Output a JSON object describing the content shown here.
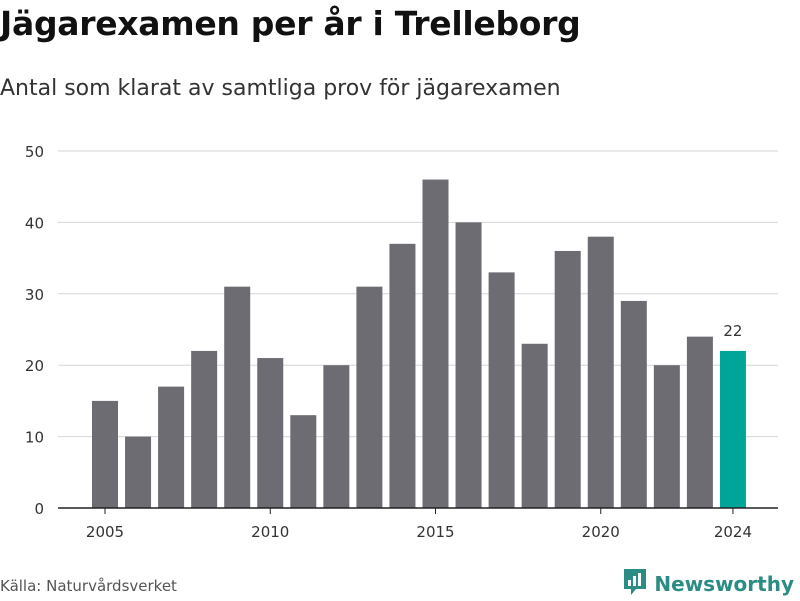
{
  "title": "Jägarexamen per år i Trelleborg",
  "subtitle": "Antal som klarat av samtliga prov för jägarexamen",
  "source": "Källa: Naturvårdsverket",
  "brand": {
    "name": "Newsworthy",
    "icon": "newsworthy-logo-icon"
  },
  "colors": {
    "bar": "#6d6c73",
    "highlight": "#00a59a",
    "grid": "#d6d6d6",
    "axis": "#222222",
    "brand": "#2a8c82"
  },
  "chart_data": {
    "type": "bar",
    "title": "Jägarexamen per år i Trelleborg",
    "subtitle": "Antal som klarat av samtliga prov för jägarexamen",
    "xlabel": "",
    "ylabel": "",
    "x": [
      2005,
      2006,
      2007,
      2008,
      2009,
      2010,
      2011,
      2012,
      2013,
      2014,
      2015,
      2016,
      2017,
      2018,
      2019,
      2020,
      2021,
      2022,
      2023,
      2024
    ],
    "values": [
      15,
      10,
      17,
      22,
      31,
      21,
      13,
      20,
      31,
      37,
      46,
      40,
      33,
      23,
      36,
      38,
      29,
      20,
      24,
      22
    ],
    "highlight_index": 19,
    "data_labels": [
      {
        "index": 19,
        "text": "22"
      }
    ],
    "ylim": [
      0,
      50
    ],
    "yticks": [
      0,
      10,
      20,
      30,
      40,
      50
    ],
    "xticks": [
      2005,
      2010,
      2015,
      2020,
      2024
    ],
    "grid": true
  }
}
